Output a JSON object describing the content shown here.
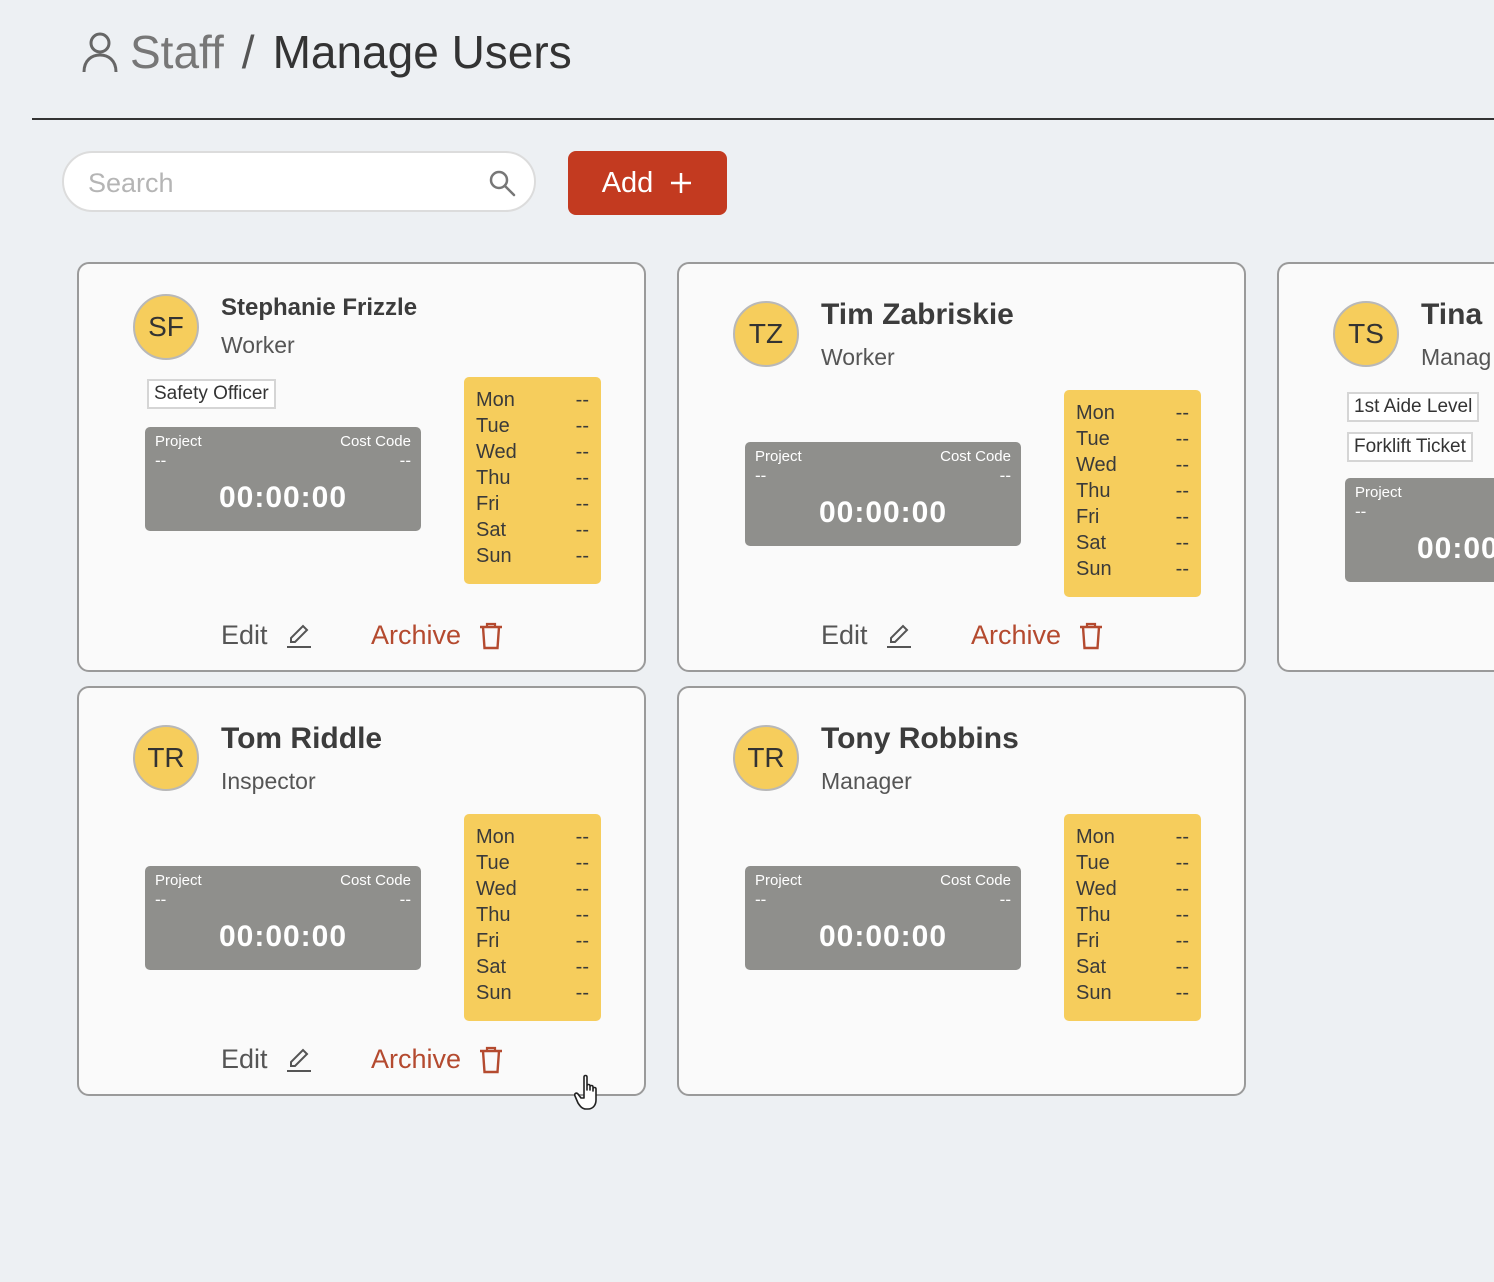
{
  "header": {
    "section": "Staff",
    "separator": "/",
    "page": "Manage Users"
  },
  "toolbar": {
    "search_placeholder": "Search",
    "search_value": "",
    "add_label": "Add"
  },
  "timer_labels": {
    "project": "Project",
    "cost_code": "Cost Code"
  },
  "edit_label": "Edit",
  "archive_label": "Archive",
  "cards": [
    {
      "initials": "SF",
      "name": "Stephanie Frizzle",
      "role": "Worker",
      "tags": [
        "Safety Officer"
      ],
      "project": "--",
      "cost_code": "--",
      "time": "00:00:00",
      "schedule": [
        {
          "day": "Mon",
          "value": "--"
        },
        {
          "day": "Tue",
          "value": "--"
        },
        {
          "day": "Wed",
          "value": "--"
        },
        {
          "day": "Thu",
          "value": "--"
        },
        {
          "day": "Fri",
          "value": "--"
        },
        {
          "day": "Sat",
          "value": "--"
        },
        {
          "day": "Sun",
          "value": "--"
        }
      ]
    },
    {
      "initials": "TZ",
      "name": "Tim Zabriskie",
      "role": "Worker",
      "tags": [],
      "project": "--",
      "cost_code": "--",
      "time": "00:00:00",
      "schedule": [
        {
          "day": "Mon",
          "value": "--"
        },
        {
          "day": "Tue",
          "value": "--"
        },
        {
          "day": "Wed",
          "value": "--"
        },
        {
          "day": "Thu",
          "value": "--"
        },
        {
          "day": "Fri",
          "value": "--"
        },
        {
          "day": "Sat",
          "value": "--"
        },
        {
          "day": "Sun",
          "value": "--"
        }
      ]
    },
    {
      "initials": "TS",
      "name": "Tina",
      "role": "Manag",
      "tags": [
        "1st Aide Level",
        "Forklift Ticket"
      ],
      "project": "--",
      "time": "00:00"
    },
    {
      "initials": "TR",
      "name": "Tom Riddle",
      "role": "Inspector",
      "tags": [],
      "project": "--",
      "cost_code": "--",
      "time": "00:00:00",
      "schedule": [
        {
          "day": "Mon",
          "value": "--"
        },
        {
          "day": "Tue",
          "value": "--"
        },
        {
          "day": "Wed",
          "value": "--"
        },
        {
          "day": "Thu",
          "value": "--"
        },
        {
          "day": "Fri",
          "value": "--"
        },
        {
          "day": "Sat",
          "value": "--"
        },
        {
          "day": "Sun",
          "value": "--"
        }
      ]
    },
    {
      "initials": "TR",
      "name": "Tony Robbins",
      "role": "Manager",
      "tags": [],
      "project": "--",
      "cost_code": "--",
      "time": "00:00:00",
      "schedule": [
        {
          "day": "Mon",
          "value": "--"
        },
        {
          "day": "Tue",
          "value": "--"
        },
        {
          "day": "Wed",
          "value": "--"
        },
        {
          "day": "Thu",
          "value": "--"
        },
        {
          "day": "Fri",
          "value": "--"
        },
        {
          "day": "Sat",
          "value": "--"
        },
        {
          "day": "Sun",
          "value": "--"
        }
      ]
    }
  ]
}
